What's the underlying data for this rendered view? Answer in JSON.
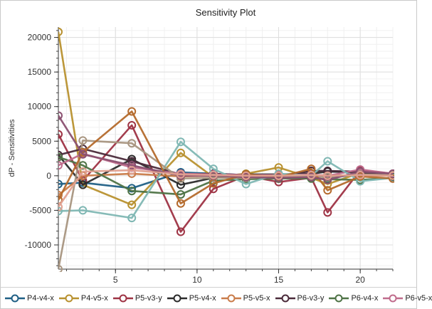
{
  "chart_data": {
    "type": "line",
    "title": "Sensitivity Plot",
    "xlabel": "",
    "ylabel": "dP - Sensitivities",
    "xlim": [
      1.5,
      22
    ],
    "ylim": [
      -13500,
      21500
    ],
    "x_ticks": [
      5,
      10,
      15,
      20
    ],
    "y_ticks": [
      -10000,
      -5000,
      0,
      5000,
      10000,
      15000,
      20000
    ],
    "x_tick_labels": [
      "5",
      "10",
      "15",
      "20"
    ],
    "y_tick_labels": [
      "-10000",
      "-5000",
      "0",
      "5000",
      "10000",
      "15000",
      "20000"
    ],
    "grid": true,
    "legend_position": "bottom",
    "x": [
      1.5,
      3,
      6,
      9,
      11,
      13,
      15,
      17,
      18,
      20,
      22
    ],
    "series": [
      {
        "name": "P4-v4-x",
        "color": "#1f5f85",
        "values": [
          -1200,
          -1000,
          -1800,
          500,
          300,
          100,
          0,
          200,
          -300,
          200,
          100
        ]
      },
      {
        "name": "P4-v5-x",
        "color": "#b8912f",
        "values": [
          20800,
          -1300,
          -4200,
          3300,
          -200,
          300,
          1200,
          -300,
          -1200,
          400,
          100
        ]
      },
      {
        "name": "P5-v3-y",
        "color": "#9e3344",
        "values": [
          6000,
          -700,
          7300,
          -8100,
          -1900,
          0,
          -900,
          -300,
          -5300,
          800,
          300
        ]
      },
      {
        "name": "P5-v4-x",
        "color": "#2b2b2b",
        "values": [
          3000,
          -1300,
          2400,
          -1300,
          -300,
          200,
          200,
          300,
          600,
          500,
          -100
        ]
      },
      {
        "name": "P5-v5-x",
        "color": "#c97c4a",
        "values": [
          -2800,
          0,
          300,
          -100,
          0,
          100,
          0,
          0,
          100,
          0,
          0
        ]
      },
      {
        "name": "P6-v3-y",
        "color": "#4a2a3a",
        "values": [
          3000,
          3900,
          2100,
          200,
          300,
          100,
          -100,
          700,
          700,
          600,
          0
        ]
      },
      {
        "name": "P6-v4-x",
        "color": "#4e7346",
        "values": [
          2700,
          1500,
          -2200,
          -2700,
          -700,
          -500,
          -400,
          -400,
          -500,
          -600,
          -300
        ]
      },
      {
        "name": "P6-v5-x",
        "color": "#c06c8c",
        "values": [
          1500,
          3200,
          1200,
          300,
          200,
          100,
          100,
          200,
          0,
          900,
          300
        ]
      },
      {
        "name": "",
        "color": "#7fb7b3",
        "values": [
          -5100,
          -5000,
          -6100,
          4900,
          1000,
          -1200,
          300,
          0,
          2100,
          -800,
          -300
        ]
      },
      {
        "name": "",
        "color": "#a89580",
        "values": [
          -13500,
          5100,
          4700,
          -400,
          -300,
          -300,
          -200,
          -100,
          -200,
          200,
          100
        ]
      },
      {
        "name": "",
        "color": "#b46a2c",
        "values": [
          -3500,
          3400,
          9300,
          -4000,
          -1100,
          200,
          -200,
          1000,
          -2100,
          -100,
          -400
        ]
      },
      {
        "name": "",
        "color": "#8a5070",
        "values": [
          8700,
          3100,
          1500,
          0,
          0,
          -200,
          -300,
          -200,
          -600,
          600,
          300
        ]
      },
      {
        "name": "",
        "color": "#e0a090",
        "values": [
          -4500,
          600,
          800,
          200,
          100,
          0,
          0,
          100,
          0,
          100,
          0
        ]
      }
    ]
  }
}
